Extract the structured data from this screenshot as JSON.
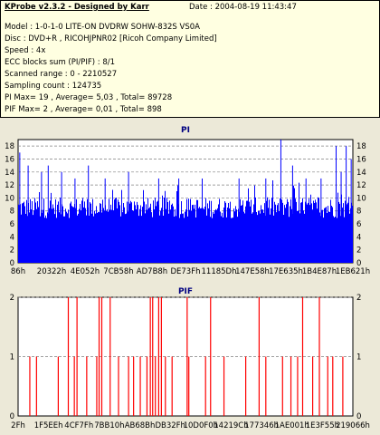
{
  "header": {
    "app_title": "KProbe v2.3.2 - Designed by Karr",
    "date": "Date : 2004-08-19 11:43:47",
    "lines": [
      "Model : 1-0-1-0 LITE-ON DVDRW SOHW-832S  VS0A",
      "Disc : DVD+R , RICOHJPNR02 [Ricoh Company Limited]",
      "Speed : 4x",
      "ECC blocks sum (PI/PIF) : 8/1",
      "Scanned range : 0 - 2210527",
      "Sampling count : 124735",
      "PI Max= 19 , Average= 5,03 , Total= 89728",
      "PIF Max= 2 , Average= 0,01 , Total= 898"
    ]
  },
  "chart_data": [
    {
      "type": "bar",
      "title": "PI",
      "ylim": [
        0,
        19
      ],
      "yticks": [
        0,
        2,
        4,
        6,
        8,
        10,
        12,
        14,
        16,
        18
      ],
      "xtick_labels": [
        "86h",
        "20322h",
        "4E052h",
        "7CB58h",
        "AD7B8h",
        "DE73Fh",
        "11185Dh",
        "147E58h",
        "17E635h",
        "1B4E87h",
        "1EB621h"
      ],
      "series_color": "#0000ff",
      "grid": true,
      "baseline_level": 8,
      "average": 5.03,
      "max": 19,
      "spikes": [
        {
          "x": 0.005,
          "y": 17
        },
        {
          "x": 0.03,
          "y": 15
        },
        {
          "x": 0.07,
          "y": 14
        },
        {
          "x": 0.09,
          "y": 15
        },
        {
          "x": 0.13,
          "y": 14
        },
        {
          "x": 0.17,
          "y": 13
        },
        {
          "x": 0.21,
          "y": 15
        },
        {
          "x": 0.26,
          "y": 13
        },
        {
          "x": 0.33,
          "y": 14
        },
        {
          "x": 0.42,
          "y": 13
        },
        {
          "x": 0.48,
          "y": 13
        },
        {
          "x": 0.55,
          "y": 13
        },
        {
          "x": 0.66,
          "y": 13
        },
        {
          "x": 0.74,
          "y": 13
        },
        {
          "x": 0.785,
          "y": 19
        },
        {
          "x": 0.82,
          "y": 15
        },
        {
          "x": 0.86,
          "y": 13
        },
        {
          "x": 0.905,
          "y": 13
        },
        {
          "x": 0.95,
          "y": 18
        },
        {
          "x": 0.965,
          "y": 14
        },
        {
          "x": 0.98,
          "y": 18
        },
        {
          "x": 0.995,
          "y": 16
        }
      ]
    },
    {
      "type": "bar",
      "title": "PIF",
      "ylim": [
        0,
        2
      ],
      "yticks": [
        0,
        1,
        2
      ],
      "xtick_labels": [
        "2Fh",
        "1F5EEh",
        "4CF7Fh",
        "7BB10h",
        "AB68Bh",
        "DB32Fh",
        "10D0F0h",
        "14219Ch",
        "177346h",
        "1AE001h",
        "1E3F55h",
        "219066h"
      ],
      "series_color": "#ff0000",
      "grid": true,
      "max": 2,
      "average": 0.01,
      "spikes": [
        {
          "x": 0.035,
          "y": 1
        },
        {
          "x": 0.055,
          "y": 1
        },
        {
          "x": 0.12,
          "y": 1
        },
        {
          "x": 0.15,
          "y": 2
        },
        {
          "x": 0.168,
          "y": 1
        },
        {
          "x": 0.176,
          "y": 2
        },
        {
          "x": 0.205,
          "y": 1
        },
        {
          "x": 0.235,
          "y": 1
        },
        {
          "x": 0.242,
          "y": 2
        },
        {
          "x": 0.25,
          "y": 2
        },
        {
          "x": 0.275,
          "y": 2
        },
        {
          "x": 0.3,
          "y": 1
        },
        {
          "x": 0.33,
          "y": 1
        },
        {
          "x": 0.345,
          "y": 1
        },
        {
          "x": 0.365,
          "y": 1
        },
        {
          "x": 0.385,
          "y": 1
        },
        {
          "x": 0.395,
          "y": 2
        },
        {
          "x": 0.402,
          "y": 2
        },
        {
          "x": 0.41,
          "y": 1
        },
        {
          "x": 0.42,
          "y": 2
        },
        {
          "x": 0.428,
          "y": 2
        },
        {
          "x": 0.44,
          "y": 1
        },
        {
          "x": 0.46,
          "y": 1
        },
        {
          "x": 0.505,
          "y": 2
        },
        {
          "x": 0.51,
          "y": 1
        },
        {
          "x": 0.56,
          "y": 1
        },
        {
          "x": 0.575,
          "y": 2
        },
        {
          "x": 0.615,
          "y": 1
        },
        {
          "x": 0.68,
          "y": 1
        },
        {
          "x": 0.72,
          "y": 2
        },
        {
          "x": 0.74,
          "y": 1
        },
        {
          "x": 0.79,
          "y": 1
        },
        {
          "x": 0.815,
          "y": 1
        },
        {
          "x": 0.835,
          "y": 1
        },
        {
          "x": 0.85,
          "y": 2
        },
        {
          "x": 0.88,
          "y": 1
        },
        {
          "x": 0.9,
          "y": 2
        },
        {
          "x": 0.925,
          "y": 1
        },
        {
          "x": 0.94,
          "y": 1
        },
        {
          "x": 0.97,
          "y": 1
        }
      ]
    }
  ]
}
